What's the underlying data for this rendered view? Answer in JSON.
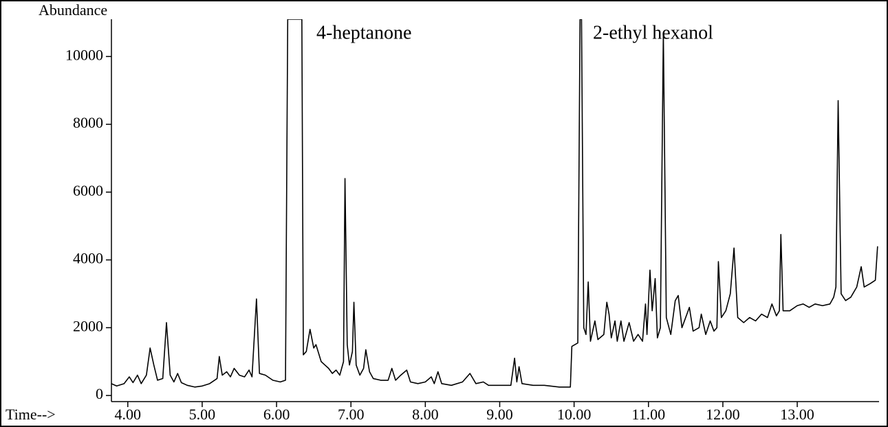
{
  "chart_data": {
    "type": "line",
    "y_label": "Abundance",
    "x_label": "Time-->",
    "annotations": [
      "4-heptanone",
      "2-ethyl hexanol"
    ],
    "xlim": [
      3.78,
      14.1
    ],
    "ylim": [
      -180,
      11100
    ],
    "xticks": [
      {
        "value": 4,
        "label": "4.00"
      },
      {
        "value": 5,
        "label": "5.00"
      },
      {
        "value": 6,
        "label": "6.00"
      },
      {
        "value": 7,
        "label": "7.00"
      },
      {
        "value": 8,
        "label": "8.00"
      },
      {
        "value": 9,
        "label": "9.00"
      },
      {
        "value": 10,
        "label": "10.00"
      },
      {
        "value": 11,
        "label": "11.00"
      },
      {
        "value": 12,
        "label": "12.00"
      },
      {
        "value": 13,
        "label": "13.00"
      }
    ],
    "yticks": [
      0,
      2000,
      4000,
      6000,
      8000,
      10000
    ],
    "grid": false,
    "x": [
      3.78,
      3.85,
      3.95,
      4.02,
      4.07,
      4.13,
      4.18,
      4.25,
      4.3,
      4.35,
      4.4,
      4.47,
      4.52,
      4.57,
      4.62,
      4.67,
      4.72,
      4.8,
      4.9,
      5.0,
      5.1,
      5.2,
      5.23,
      5.27,
      5.33,
      5.38,
      5.43,
      5.5,
      5.57,
      5.63,
      5.67,
      5.73,
      5.77,
      5.85,
      5.95,
      6.05,
      6.12,
      6.15,
      6.17,
      6.2,
      6.3,
      6.34,
      6.36,
      6.4,
      6.45,
      6.5,
      6.53,
      6.6,
      6.65,
      6.7,
      6.75,
      6.8,
      6.85,
      6.9,
      6.92,
      6.95,
      6.98,
      7.02,
      7.04,
      7.07,
      7.12,
      7.17,
      7.2,
      7.25,
      7.3,
      7.4,
      7.5,
      7.55,
      7.6,
      7.67,
      7.75,
      7.8,
      7.9,
      8.0,
      8.08,
      8.12,
      8.17,
      8.22,
      8.35,
      8.5,
      8.6,
      8.68,
      8.78,
      8.85,
      9.0,
      9.15,
      9.2,
      9.23,
      9.26,
      9.3,
      9.45,
      9.6,
      9.8,
      9.95,
      9.97,
      10.05,
      10.08,
      10.1,
      10.13,
      10.16,
      10.19,
      10.22,
      10.28,
      10.32,
      10.4,
      10.44,
      10.47,
      10.5,
      10.55,
      10.58,
      10.63,
      10.67,
      10.74,
      10.8,
      10.86,
      10.92,
      10.96,
      10.98,
      11.02,
      11.05,
      11.09,
      11.12,
      11.16,
      11.2,
      11.24,
      11.3,
      11.36,
      11.4,
      11.45,
      11.5,
      11.55,
      11.6,
      11.68,
      11.71,
      11.77,
      11.83,
      11.88,
      11.92,
      11.94,
      11.98,
      12.04,
      12.1,
      12.15,
      12.2,
      12.28,
      12.36,
      12.44,
      12.52,
      12.6,
      12.66,
      12.72,
      12.76,
      12.78,
      12.81,
      12.9,
      13.0,
      13.08,
      13.16,
      13.24,
      13.34,
      13.44,
      13.49,
      13.52,
      13.55,
      13.59,
      13.65,
      13.72,
      13.8,
      13.86,
      13.9,
      13.98,
      14.05,
      14.08
    ],
    "series": [
      {
        "color": "#000000",
        "values": [
          350,
          280,
          350,
          550,
          380,
          600,
          350,
          600,
          1400,
          900,
          450,
          500,
          2150,
          600,
          400,
          650,
          380,
          300,
          250,
          280,
          350,
          500,
          1150,
          600,
          700,
          550,
          800,
          600,
          550,
          750,
          550,
          2850,
          650,
          600,
          450,
          400,
          450,
          11100,
          11100,
          11100,
          11100,
          11100,
          1200,
          1300,
          1950,
          1400,
          1500,
          1000,
          900,
          800,
          650,
          750,
          600,
          1000,
          6400,
          1500,
          900,
          1300,
          2750,
          900,
          600,
          800,
          1350,
          700,
          500,
          450,
          450,
          800,
          450,
          600,
          750,
          400,
          350,
          400,
          550,
          350,
          700,
          350,
          300,
          400,
          650,
          350,
          400,
          300,
          300,
          300,
          1100,
          400,
          850,
          350,
          300,
          300,
          250,
          250,
          1450,
          1550,
          11100,
          11100,
          2000,
          1800,
          3350,
          1600,
          2200,
          1650,
          1800,
          2750,
          2400,
          1700,
          2200,
          1600,
          2200,
          1600,
          2150,
          1600,
          1800,
          1600,
          2700,
          1800,
          3700,
          2500,
          3450,
          1700,
          2000,
          10700,
          2300,
          1800,
          2800,
          2950,
          2000,
          2300,
          2600,
          1900,
          2000,
          2400,
          1800,
          2200,
          1900,
          2000,
          3950,
          2300,
          2500,
          3000,
          4350,
          2300,
          2150,
          2300,
          2200,
          2400,
          2300,
          2700,
          2350,
          2500,
          4750,
          2500,
          2500,
          2650,
          2700,
          2600,
          2700,
          2650,
          2700,
          2900,
          3200,
          8700,
          3000,
          2800,
          2900,
          3200,
          3800,
          3200,
          3300,
          3400,
          4400
        ]
      }
    ]
  }
}
